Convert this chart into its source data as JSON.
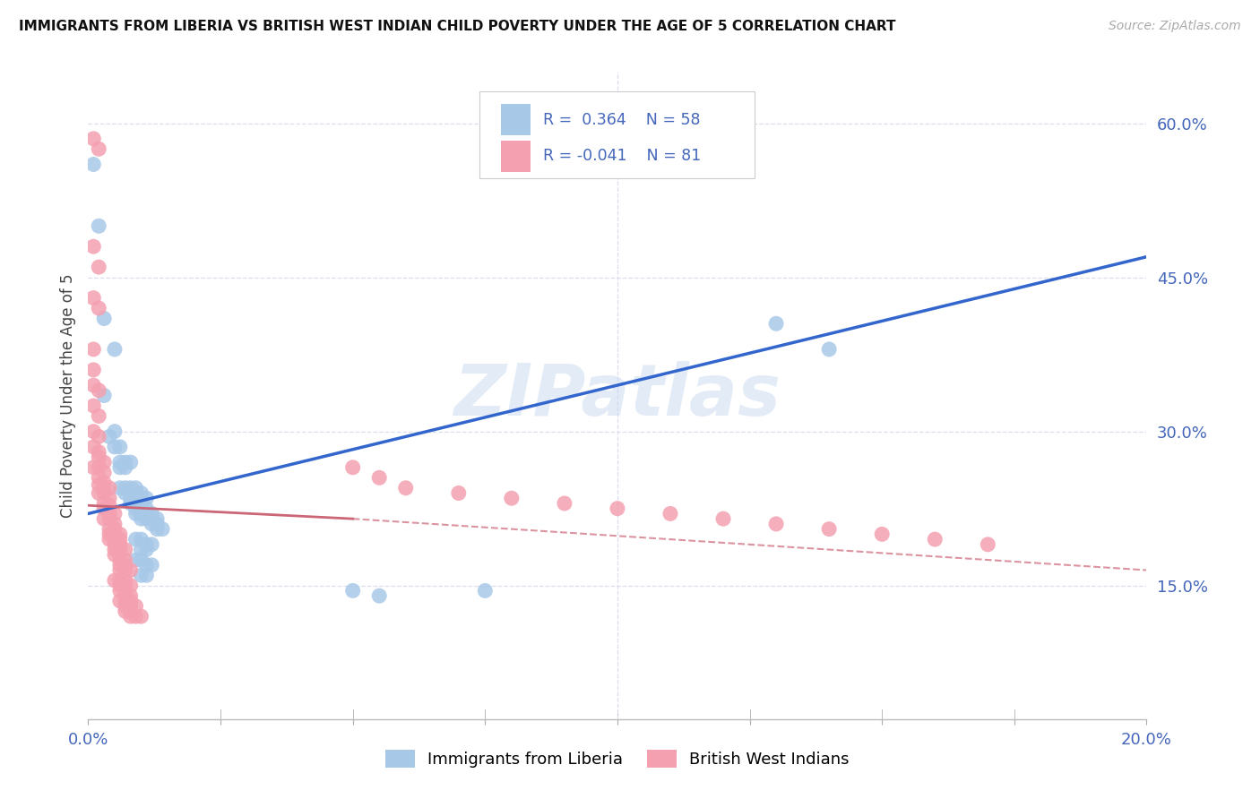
{
  "title": "IMMIGRANTS FROM LIBERIA VS BRITISH WEST INDIAN CHILD POVERTY UNDER THE AGE OF 5 CORRELATION CHART",
  "source": "Source: ZipAtlas.com",
  "ylabel": "Child Poverty Under the Age of 5",
  "xmin": 0.0,
  "xmax": 0.2,
  "ymin": 0.02,
  "ymax": 0.65,
  "yticks": [
    0.15,
    0.3,
    0.45,
    0.6
  ],
  "ytick_labels": [
    "15.0%",
    "30.0%",
    "45.0%",
    "60.0%"
  ],
  "xticks": [
    0.0,
    0.025,
    0.05,
    0.075,
    0.1,
    0.125,
    0.15,
    0.175,
    0.2
  ],
  "xtick_labels_show": {
    "0.0": "0.0%",
    "0.20": "20.0%"
  },
  "watermark": "ZIPatlas",
  "blue_color": "#a8c8e8",
  "pink_color": "#f4a0b0",
  "blue_line_color": "#3366cc",
  "pink_line_color": "#cc6677",
  "axis_color": "#4466bb",
  "grid_color": "#ddddee",
  "blue_scatter": [
    [
      0.001,
      0.56
    ],
    [
      0.002,
      0.5
    ],
    [
      0.003,
      0.41
    ],
    [
      0.005,
      0.38
    ],
    [
      0.003,
      0.335
    ],
    [
      0.005,
      0.3
    ],
    [
      0.004,
      0.295
    ],
    [
      0.006,
      0.285
    ],
    [
      0.005,
      0.285
    ],
    [
      0.006,
      0.27
    ],
    [
      0.006,
      0.265
    ],
    [
      0.007,
      0.27
    ],
    [
      0.007,
      0.265
    ],
    [
      0.008,
      0.27
    ],
    [
      0.006,
      0.245
    ],
    [
      0.007,
      0.245
    ],
    [
      0.008,
      0.245
    ],
    [
      0.009,
      0.245
    ],
    [
      0.007,
      0.24
    ],
    [
      0.008,
      0.24
    ],
    [
      0.009,
      0.24
    ],
    [
      0.01,
      0.24
    ],
    [
      0.008,
      0.235
    ],
    [
      0.009,
      0.235
    ],
    [
      0.01,
      0.235
    ],
    [
      0.011,
      0.235
    ],
    [
      0.008,
      0.23
    ],
    [
      0.009,
      0.23
    ],
    [
      0.01,
      0.23
    ],
    [
      0.009,
      0.225
    ],
    [
      0.01,
      0.225
    ],
    [
      0.011,
      0.225
    ],
    [
      0.009,
      0.22
    ],
    [
      0.01,
      0.22
    ],
    [
      0.011,
      0.22
    ],
    [
      0.012,
      0.22
    ],
    [
      0.01,
      0.215
    ],
    [
      0.011,
      0.215
    ],
    [
      0.012,
      0.215
    ],
    [
      0.013,
      0.215
    ],
    [
      0.012,
      0.21
    ],
    [
      0.013,
      0.21
    ],
    [
      0.013,
      0.205
    ],
    [
      0.014,
      0.205
    ],
    [
      0.009,
      0.195
    ],
    [
      0.01,
      0.195
    ],
    [
      0.011,
      0.19
    ],
    [
      0.012,
      0.19
    ],
    [
      0.01,
      0.185
    ],
    [
      0.011,
      0.185
    ],
    [
      0.009,
      0.175
    ],
    [
      0.01,
      0.175
    ],
    [
      0.011,
      0.17
    ],
    [
      0.012,
      0.17
    ],
    [
      0.01,
      0.16
    ],
    [
      0.011,
      0.16
    ],
    [
      0.05,
      0.145
    ],
    [
      0.055,
      0.14
    ],
    [
      0.075,
      0.145
    ],
    [
      0.13,
      0.405
    ],
    [
      0.14,
      0.38
    ]
  ],
  "pink_scatter": [
    [
      0.001,
      0.585
    ],
    [
      0.002,
      0.575
    ],
    [
      0.001,
      0.48
    ],
    [
      0.002,
      0.46
    ],
    [
      0.001,
      0.43
    ],
    [
      0.002,
      0.42
    ],
    [
      0.001,
      0.38
    ],
    [
      0.001,
      0.36
    ],
    [
      0.001,
      0.345
    ],
    [
      0.002,
      0.34
    ],
    [
      0.001,
      0.325
    ],
    [
      0.002,
      0.315
    ],
    [
      0.001,
      0.3
    ],
    [
      0.002,
      0.295
    ],
    [
      0.001,
      0.285
    ],
    [
      0.002,
      0.28
    ],
    [
      0.002,
      0.275
    ],
    [
      0.003,
      0.27
    ],
    [
      0.001,
      0.265
    ],
    [
      0.002,
      0.265
    ],
    [
      0.003,
      0.26
    ],
    [
      0.002,
      0.255
    ],
    [
      0.003,
      0.25
    ],
    [
      0.002,
      0.248
    ],
    [
      0.003,
      0.245
    ],
    [
      0.004,
      0.245
    ],
    [
      0.002,
      0.24
    ],
    [
      0.003,
      0.24
    ],
    [
      0.004,
      0.235
    ],
    [
      0.003,
      0.23
    ],
    [
      0.004,
      0.228
    ],
    [
      0.003,
      0.225
    ],
    [
      0.004,
      0.22
    ],
    [
      0.005,
      0.22
    ],
    [
      0.003,
      0.215
    ],
    [
      0.004,
      0.215
    ],
    [
      0.005,
      0.21
    ],
    [
      0.004,
      0.205
    ],
    [
      0.005,
      0.205
    ],
    [
      0.004,
      0.2
    ],
    [
      0.005,
      0.2
    ],
    [
      0.006,
      0.2
    ],
    [
      0.004,
      0.195
    ],
    [
      0.005,
      0.195
    ],
    [
      0.006,
      0.195
    ],
    [
      0.005,
      0.19
    ],
    [
      0.006,
      0.19
    ],
    [
      0.005,
      0.185
    ],
    [
      0.006,
      0.185
    ],
    [
      0.007,
      0.185
    ],
    [
      0.005,
      0.18
    ],
    [
      0.006,
      0.175
    ],
    [
      0.007,
      0.175
    ],
    [
      0.006,
      0.17
    ],
    [
      0.007,
      0.17
    ],
    [
      0.006,
      0.165
    ],
    [
      0.007,
      0.165
    ],
    [
      0.008,
      0.165
    ],
    [
      0.005,
      0.155
    ],
    [
      0.006,
      0.155
    ],
    [
      0.007,
      0.155
    ],
    [
      0.006,
      0.15
    ],
    [
      0.007,
      0.15
    ],
    [
      0.008,
      0.15
    ],
    [
      0.006,
      0.145
    ],
    [
      0.007,
      0.145
    ],
    [
      0.007,
      0.14
    ],
    [
      0.008,
      0.14
    ],
    [
      0.006,
      0.135
    ],
    [
      0.007,
      0.135
    ],
    [
      0.008,
      0.135
    ],
    [
      0.007,
      0.13
    ],
    [
      0.008,
      0.13
    ],
    [
      0.009,
      0.13
    ],
    [
      0.007,
      0.125
    ],
    [
      0.008,
      0.125
    ],
    [
      0.008,
      0.12
    ],
    [
      0.009,
      0.12
    ],
    [
      0.01,
      0.12
    ],
    [
      0.05,
      0.265
    ],
    [
      0.055,
      0.255
    ],
    [
      0.06,
      0.245
    ],
    [
      0.07,
      0.24
    ],
    [
      0.08,
      0.235
    ],
    [
      0.09,
      0.23
    ],
    [
      0.1,
      0.225
    ],
    [
      0.11,
      0.22
    ],
    [
      0.12,
      0.215
    ],
    [
      0.13,
      0.21
    ],
    [
      0.14,
      0.205
    ],
    [
      0.15,
      0.2
    ],
    [
      0.16,
      0.195
    ],
    [
      0.17,
      0.19
    ]
  ]
}
